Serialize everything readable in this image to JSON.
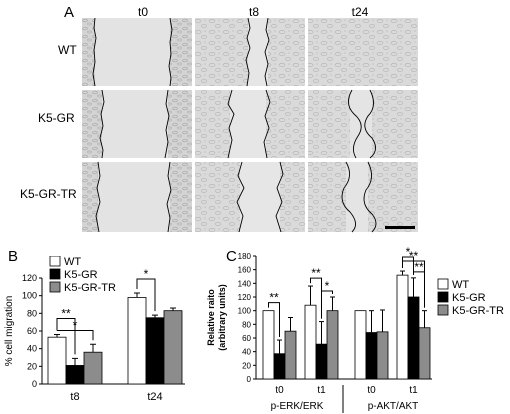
{
  "panel_a": {
    "letter": "A",
    "columns": [
      "t0",
      "t8",
      "t24"
    ],
    "rows": [
      "WT",
      "K5-GR",
      "K5-GR-TR"
    ]
  },
  "panel_b": {
    "letter": "B"
  },
  "panel_c": {
    "letter": "C"
  },
  "colors": {
    "WT": "#ffffff",
    "K5-GR": "#000000",
    "K5-GR-TR": "#8c8c8c",
    "axis": "#000000"
  },
  "chart_data": [
    {
      "type": "bar",
      "ylabel": "% cell migration",
      "ylim": [
        0,
        120
      ],
      "yticks": [
        0,
        20,
        40,
        60,
        80,
        100,
        120
      ],
      "categories": [
        "t8",
        "t24"
      ],
      "legend": [
        "WT",
        "K5-GR",
        "K5-GR-TR"
      ],
      "legend_position": "top-left",
      "series": [
        {
          "name": "WT",
          "values": [
            53,
            98
          ],
          "errors": [
            3,
            5
          ]
        },
        {
          "name": "K5-GR",
          "values": [
            21,
            75
          ],
          "errors": [
            8,
            3
          ]
        },
        {
          "name": "K5-GR-TR",
          "values": [
            36,
            83
          ],
          "errors": [
            9,
            3
          ]
        }
      ],
      "significance": [
        {
          "label": "**",
          "category": "t8",
          "pair": [
            "WT",
            "K5-GR"
          ]
        },
        {
          "label": "*",
          "category": "t8",
          "pair": [
            "WT",
            "K5-GR-TR"
          ]
        },
        {
          "label": "*",
          "category": "t24",
          "pair": [
            "WT",
            "K5-GR"
          ]
        }
      ]
    },
    {
      "type": "bar",
      "ylabel_lines": [
        "Relative raito",
        "(arbitrary units)"
      ],
      "ylim": [
        0,
        180
      ],
      "yticks": [
        0,
        20,
        40,
        60,
        80,
        100,
        120,
        140,
        160,
        180
      ],
      "categories": [
        "t0",
        "t1",
        "t0",
        "t1"
      ],
      "groups": [
        "p-ERK/ERK",
        "p-AKT/AKT"
      ],
      "legend": [
        "WT",
        "K5-GR",
        "K5-GR-TR"
      ],
      "legend_position": "right",
      "series": [
        {
          "name": "WT",
          "values": [
            100,
            108,
            100,
            152
          ],
          "errors": [
            0,
            28,
            0,
            6
          ]
        },
        {
          "name": "K5-GR",
          "values": [
            37,
            51,
            68,
            120
          ],
          "errors": [
            20,
            33,
            32,
            28
          ]
        },
        {
          "name": "K5-GR-TR",
          "values": [
            70,
            100,
            69,
            75
          ],
          "errors": [
            20,
            20,
            32,
            25
          ]
        }
      ],
      "significance": [
        {
          "label": "**",
          "category_index": 0,
          "pair": [
            "WT",
            "K5-GR"
          ]
        },
        {
          "label": "**",
          "category_index": 1,
          "pair": [
            "WT",
            "K5-GR"
          ]
        },
        {
          "label": "*",
          "category_index": 1,
          "pair": [
            "K5-GR",
            "K5-GR-TR"
          ]
        },
        {
          "label": "*",
          "category_index": 3,
          "pair": [
            "WT",
            "K5-GR"
          ]
        },
        {
          "label": "**",
          "category_index": 3,
          "pair": [
            "WT",
            "K5-GR-TR"
          ]
        },
        {
          "label": "**",
          "category_index": 3,
          "pair": [
            "K5-GR",
            "K5-GR-TR"
          ]
        }
      ]
    }
  ]
}
